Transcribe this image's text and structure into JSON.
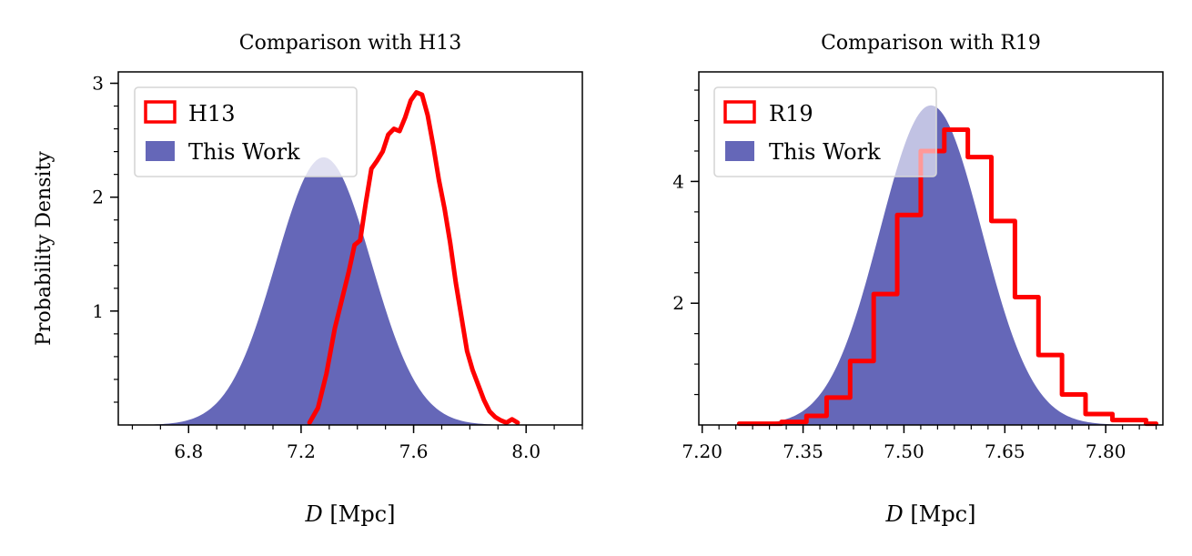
{
  "chart_data": [
    {
      "type": "area",
      "title": "Comparison with H13",
      "xlabel_italic": "D",
      "xlabel_rest": " [Mpc]",
      "ylabel": "Probability Density",
      "xlim": [
        6.55,
        8.2
      ],
      "ylim": [
        0,
        3.1
      ],
      "xticks": [
        6.8,
        7.2,
        7.6,
        8.0
      ],
      "xtick_labels": [
        "6.8",
        "7.2",
        "7.6",
        "8.0"
      ],
      "xminor_step": 0.1,
      "yticks": [
        1,
        2,
        3
      ],
      "ytick_labels": [
        "1",
        "2",
        "3"
      ],
      "yminor_step": 0.2,
      "legend_position": "top-left",
      "series": [
        {
          "name": "H13",
          "kind": "step",
          "color": "#ff0000",
          "x": [
            7.23,
            7.26,
            7.29,
            7.32,
            7.35,
            7.37,
            7.39,
            7.41,
            7.43,
            7.45,
            7.47,
            7.49,
            7.51,
            7.53,
            7.55,
            7.57,
            7.59,
            7.61,
            7.63,
            7.65,
            7.67,
            7.69,
            7.71,
            7.73,
            7.75,
            7.77,
            7.79,
            7.81,
            7.83,
            7.85,
            7.87,
            7.89,
            7.91,
            7.93,
            7.95,
            7.97
          ],
          "values": [
            0.02,
            0.15,
            0.45,
            0.85,
            1.15,
            1.35,
            1.58,
            1.62,
            1.95,
            2.25,
            2.32,
            2.4,
            2.55,
            2.6,
            2.58,
            2.7,
            2.85,
            2.92,
            2.9,
            2.72,
            2.45,
            2.15,
            1.9,
            1.6,
            1.25,
            0.95,
            0.65,
            0.48,
            0.35,
            0.22,
            0.12,
            0.07,
            0.04,
            0.02,
            0.05,
            0.02
          ]
        },
        {
          "name": "This Work",
          "kind": "gaussian",
          "color": "#6567b8",
          "mean": 7.28,
          "sigma": 0.17,
          "peak": 2.35
        }
      ]
    },
    {
      "type": "area",
      "title": "Comparison with R19",
      "xlabel_italic": "D",
      "xlabel_rest": " [Mpc]",
      "ylabel": "",
      "xlim": [
        7.195,
        7.885
      ],
      "ylim": [
        0,
        5.8
      ],
      "xticks": [
        7.2,
        7.35,
        7.5,
        7.65,
        7.8
      ],
      "xtick_labels": [
        "7.20",
        "7.35",
        "7.50",
        "7.65",
        "7.80"
      ],
      "xminor_step": 0.025,
      "yticks": [
        2,
        4
      ],
      "ytick_labels": [
        "2",
        "4"
      ],
      "yminor_step": 0.5,
      "legend_position": "top-left",
      "series": [
        {
          "name": "R19",
          "kind": "step",
          "color": "#ff0000",
          "edges": [
            7.255,
            7.318,
            7.355,
            7.385,
            7.42,
            7.455,
            7.49,
            7.525,
            7.56,
            7.595,
            7.63,
            7.665,
            7.7,
            7.735,
            7.77,
            7.81,
            7.86,
            7.875
          ],
          "values": [
            0.02,
            0.05,
            0.15,
            0.45,
            1.05,
            2.15,
            3.45,
            4.5,
            4.85,
            4.4,
            3.35,
            2.1,
            1.15,
            0.5,
            0.18,
            0.08,
            0.02
          ]
        },
        {
          "name": "This Work",
          "kind": "gaussian",
          "color": "#6567b8",
          "mean": 7.54,
          "sigma": 0.076,
          "peak": 5.25
        }
      ]
    }
  ]
}
